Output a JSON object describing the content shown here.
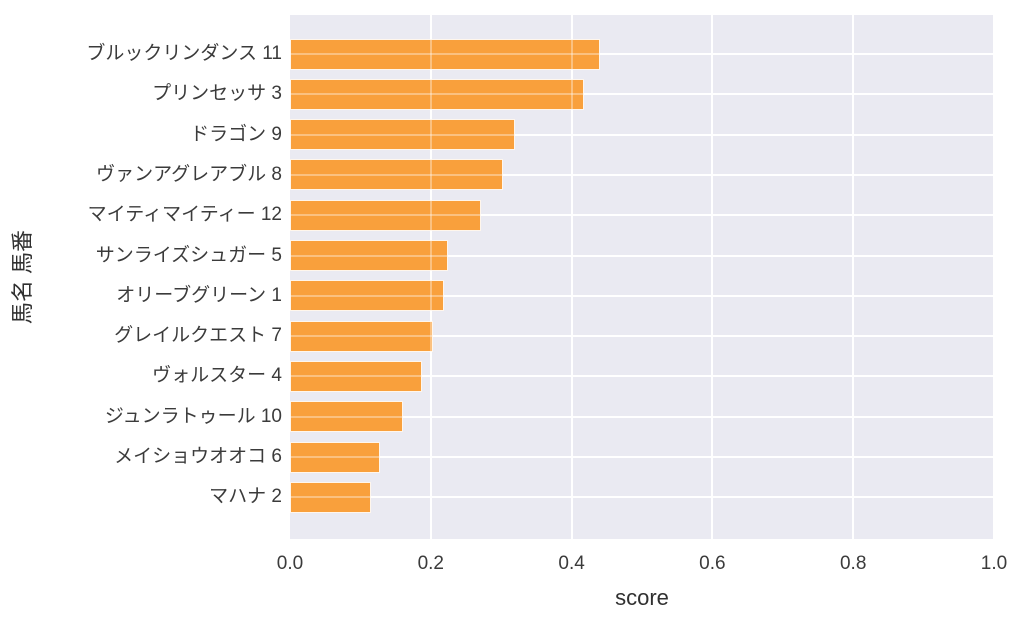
{
  "chart_data": {
    "type": "bar",
    "orientation": "horizontal",
    "title": "",
    "xlabel": "score",
    "ylabel": "馬名 馬番",
    "categories": [
      "ブルックリンダンス 11",
      "プリンセッサ 3",
      "ドラゴン 9",
      "ヴァンアグレアブル 8",
      "マイティマイティー 12",
      "サンライズシュガー 5",
      "オリーブグリーン 1",
      "グレイルクエスト 7",
      "ヴォルスター 4",
      "ジュンラトゥール 10",
      "メイショウオオコ 6",
      "マハナ 2"
    ],
    "values": [
      0.441,
      0.418,
      0.32,
      0.303,
      0.272,
      0.224,
      0.219,
      0.203,
      0.187,
      0.16,
      0.128,
      0.115
    ],
    "xlim": [
      0.0,
      1.0
    ],
    "xticks": [
      0.0,
      0.2,
      0.4,
      0.6,
      0.8,
      1.0
    ],
    "xtick_labels": [
      "0.0",
      "0.2",
      "0.4",
      "0.6",
      "0.8",
      "1.0"
    ],
    "grid": true,
    "legend_visible": false,
    "styles": {
      "bar_color": "#F9A03C",
      "bar_edge_color": "#FFFFFF",
      "plot_background": "#EAEAF2",
      "grid_color": "#FFFFFF",
      "tick_text_color": "#3B3B3B",
      "axis_title_color": "#303030",
      "figure_background": "#FFFFFF"
    }
  }
}
